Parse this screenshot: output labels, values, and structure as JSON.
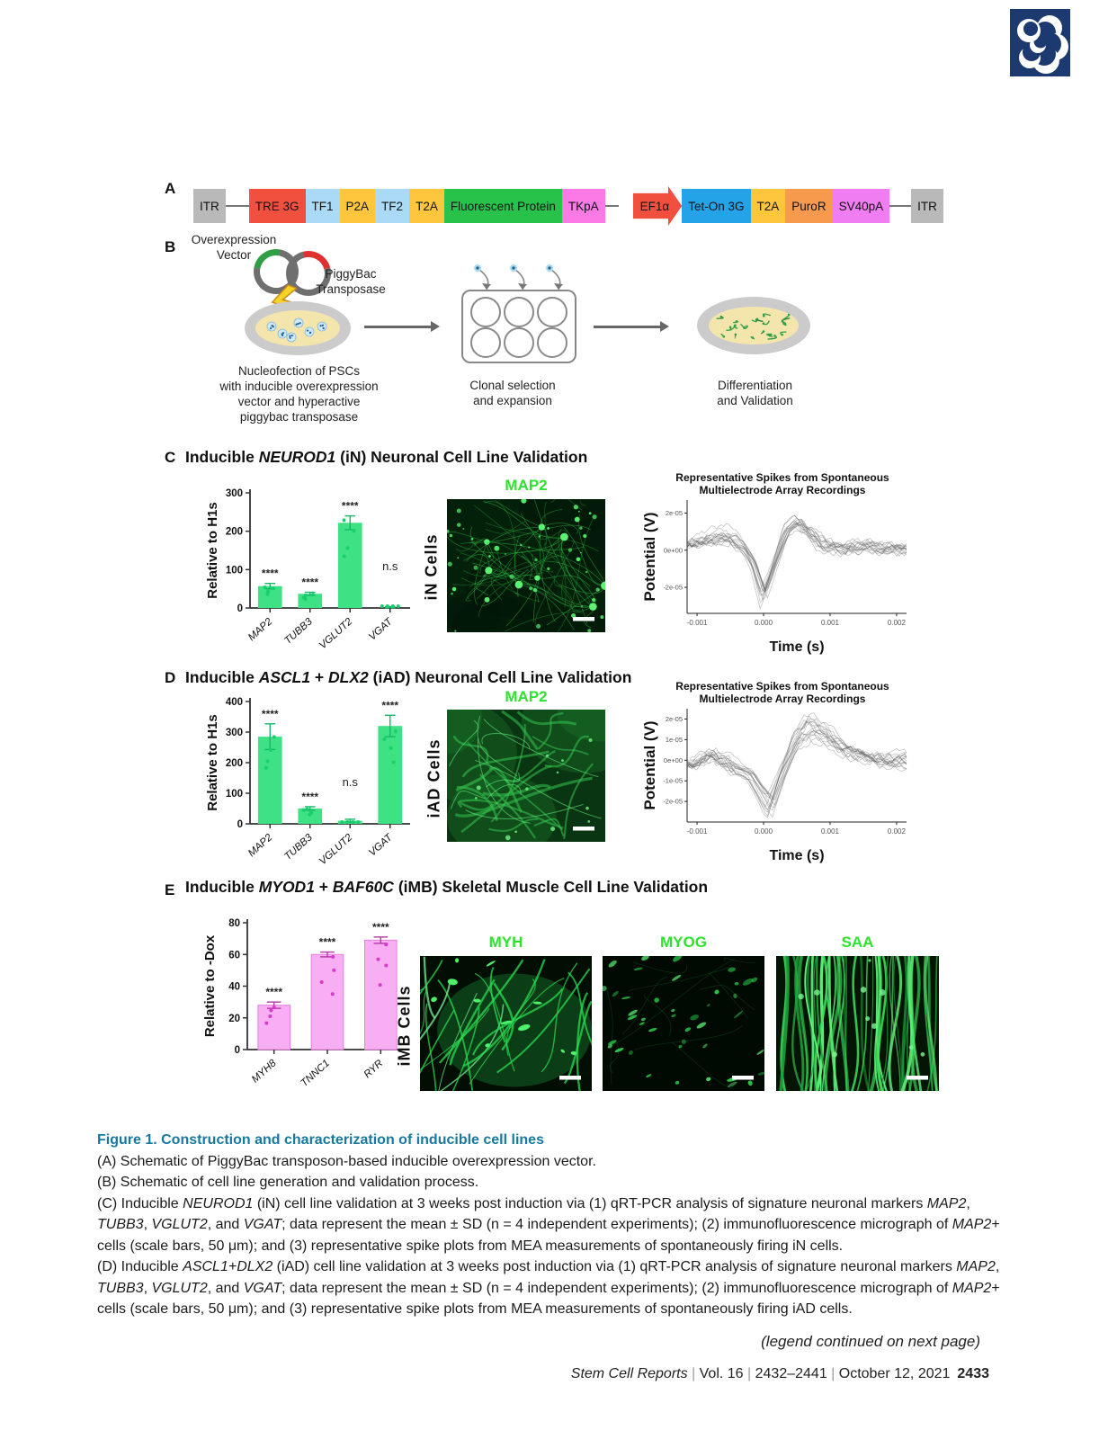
{
  "logo": {
    "name": "stem-cell-reports-journal-logo",
    "color": "#1d3a70"
  },
  "panel_a": {
    "letter": "A",
    "items": [
      {
        "kind": "box",
        "label": "ITR",
        "bg": "#b9b9b9"
      },
      {
        "kind": "line",
        "w": 26
      },
      {
        "kind": "box",
        "label": "TRE 3G",
        "bg": "#f2503f"
      },
      {
        "kind": "box",
        "label": "TF1",
        "bg": "#aadaf5"
      },
      {
        "kind": "box",
        "label": "P2A",
        "bg": "#fdc63d"
      },
      {
        "kind": "box",
        "label": "TF2",
        "bg": "#aadaf5"
      },
      {
        "kind": "box",
        "label": "T2A",
        "bg": "#fdc63d"
      },
      {
        "kind": "box",
        "label": "Fluorescent Protein",
        "bg": "#28c24b"
      },
      {
        "kind": "box",
        "label": "TKpA",
        "bg": "#fb7ae5"
      },
      {
        "kind": "line",
        "w": 15
      },
      {
        "kind": "gap",
        "w": 16
      },
      {
        "kind": "arrow",
        "label": "EF1α",
        "bg": "#f2503f"
      },
      {
        "kind": "box",
        "label": "Tet-On 3G",
        "bg": "#25a3e8"
      },
      {
        "kind": "box",
        "label": "T2A",
        "bg": "#fdc63d"
      },
      {
        "kind": "box",
        "label": "PuroR",
        "bg": "#f79a4d"
      },
      {
        "kind": "box",
        "label": "SV40pA",
        "bg": "#f07df2"
      },
      {
        "kind": "line",
        "w": 24
      },
      {
        "kind": "box",
        "label": "ITR",
        "bg": "#b9b9b9"
      }
    ]
  },
  "panel_b": {
    "letter": "B",
    "overexpression_vector_label": "Overexpression\nVector",
    "transposase_label": "PiggyBac\nTransposase",
    "caption1": "Nucleofection of PSCs\nwith inducible overexpression\nvector and hyperactive\npiggybac transposase",
    "caption2": "Clonal selection\nand expansion",
    "caption3": "Differentiation\nand Validation"
  },
  "panel_c": {
    "letter": "C",
    "title_segments": [
      {
        "t": "Inducible "
      },
      {
        "t": "NEUROD1",
        "i": 1
      },
      {
        "t": " (iN) Neuronal Cell Line Validation"
      }
    ],
    "stain_label": "MAP2",
    "row_label": "iN Cells",
    "mea_title": "Representative Spikes from Spontaneous\nMultielectrode Array Recordings"
  },
  "panel_d": {
    "letter": "D",
    "title_segments": [
      {
        "t": "Inducible "
      },
      {
        "t": "ASCL1",
        "i": 1
      },
      {
        "t": " + "
      },
      {
        "t": "DLX2",
        "i": 1
      },
      {
        "t": " (iAD) Neuronal Cell Line Validation"
      }
    ],
    "stain_label": "MAP2",
    "row_label": "iAD Cells",
    "mea_title": "Representative Spikes from Spontaneous\nMultielectrode Array Recordings"
  },
  "panel_e": {
    "letter": "E",
    "title_segments": [
      {
        "t": "Inducible "
      },
      {
        "t": "MYOD1",
        "i": 1
      },
      {
        "t": " + "
      },
      {
        "t": "BAF60C",
        "i": 1
      },
      {
        "t": " (iMB) Skeletal Muscle Cell Line Validation"
      }
    ],
    "stain_labels": [
      "MYH",
      "MYOG",
      "SAA"
    ],
    "row_label": "iMB Cells"
  },
  "chart_data": [
    {
      "id": "qpcr_iN",
      "type": "bar",
      "ylabel": "Relative to H1s",
      "ylim": [
        0,
        300
      ],
      "yticks": [
        0,
        100,
        200,
        300
      ],
      "categories": [
        "MAP2",
        "TUBB3",
        "VGLUT2",
        "VGAT"
      ],
      "values": [
        57,
        37,
        222,
        2
      ],
      "errors": [
        7,
        4,
        18,
        1.5
      ],
      "annotations": [
        "****",
        "****",
        "****",
        "n.s"
      ],
      "bar_color": "#3ee184",
      "err_color": "#16b868",
      "dot_color": "#18cf6e",
      "seed": 21
    },
    {
      "id": "qpcr_iAD",
      "type": "bar",
      "ylabel": "Relative to H1s",
      "ylim": [
        0,
        400
      ],
      "yticks": [
        0,
        100,
        200,
        300,
        400
      ],
      "categories": [
        "MAP2",
        "TUBB3",
        "VGLUT2",
        "VGAT"
      ],
      "values": [
        285,
        50,
        10,
        320
      ],
      "errors": [
        42,
        6,
        5,
        35
      ],
      "annotations": [
        "****",
        "****",
        "n.s",
        "****"
      ],
      "bar_color": "#3ee184",
      "err_color": "#16b868",
      "dot_color": "#18cf6e",
      "seed": 33
    },
    {
      "id": "qpcr_iMB",
      "type": "bar",
      "ylabel": "Relative to -Dox",
      "ylim": [
        0,
        80
      ],
      "yticks": [
        0,
        20,
        40,
        60,
        80
      ],
      "categories": [
        "MYH8",
        "TNNC1",
        "RYR"
      ],
      "values": [
        28,
        60,
        69
      ],
      "errors": [
        2,
        1.5,
        2
      ],
      "annotations": [
        "****",
        "****",
        "****"
      ],
      "bar_color": "#f8aef2",
      "err_color": "#b53aa8",
      "dot_color": "#d63bc9",
      "seed": 45
    },
    {
      "id": "mea_iN",
      "type": "line",
      "xlabel": "Time (s)",
      "ylabel": "Potential (V)",
      "xlim": [
        -0.00115,
        0.00215
      ],
      "ylim": [
        -3.4e-05,
        2.7e-05
      ],
      "xticks": [
        {
          "v": -0.001,
          "l": "-0.001"
        },
        {
          "v": 0,
          "l": "0.000"
        },
        {
          "v": 0.001,
          "l": "0.001"
        },
        {
          "v": 0.002,
          "l": "0.002"
        }
      ],
      "yticks": [
        {
          "v": 2e-05,
          "l": "2e-05"
        },
        {
          "v": 0,
          "l": "0e+00"
        },
        {
          "v": -2e-05,
          "l": "-2e-05"
        }
      ],
      "n_traces": 16,
      "seed": 7,
      "base": [
        [
          -0.0011,
          3e-06
        ],
        [
          -0.0008,
          6e-06
        ],
        [
          -0.0005,
          8e-06
        ],
        [
          -0.0003,
          2e-06
        ],
        [
          -0.00015,
          -8e-06
        ],
        [
          0,
          -2.7e-05
        ],
        [
          0.0002,
          -5e-06
        ],
        [
          0.00035,
          1.2e-05
        ],
        [
          0.0005,
          1.7e-05
        ],
        [
          0.0007,
          1e-05
        ],
        [
          0.0009,
          3e-06
        ],
        [
          0.0012,
          1e-06
        ],
        [
          0.0016,
          2e-06
        ],
        [
          0.002,
          1e-06
        ]
      ]
    },
    {
      "id": "mea_iAD",
      "type": "line",
      "xlabel": "Time (s)",
      "ylabel": "Potential (V)",
      "xlim": [
        -0.00115,
        0.00215
      ],
      "ylim": [
        -3e-05,
        2.5e-05
      ],
      "xticks": [
        {
          "v": -0.001,
          "l": "-0.001"
        },
        {
          "v": 0,
          "l": "0.000"
        },
        {
          "v": 0.001,
          "l": "0.001"
        },
        {
          "v": 0.002,
          "l": "0.002"
        }
      ],
      "yticks": [
        {
          "v": 2e-05,
          "l": "2e-05"
        },
        {
          "v": 1e-05,
          "l": "1e-05"
        },
        {
          "v": 0,
          "l": "0e+00"
        },
        {
          "v": -1e-05,
          "l": "-1e-05"
        },
        {
          "v": -2e-05,
          "l": "-2e-05"
        }
      ],
      "n_traces": 16,
      "seed": 11,
      "base": [
        [
          -0.0011,
          -2e-06
        ],
        [
          -0.0008,
          3e-06
        ],
        [
          -0.0005,
          -3e-06
        ],
        [
          -0.0002,
          -8e-06
        ],
        [
          5e-05,
          -2.3e-05
        ],
        [
          0.0001,
          -2.5e-05
        ],
        [
          0.0003,
          -5e-06
        ],
        [
          0.0005,
          1.2e-05
        ],
        [
          0.0007,
          1.9e-05
        ],
        [
          0.0009,
          1.4e-05
        ],
        [
          0.0012,
          6e-06
        ],
        [
          0.0015,
          3e-06
        ],
        [
          0.0018,
          1e-06
        ],
        [
          0.002,
          0
        ]
      ]
    }
  ],
  "micrographs": [
    {
      "id": "map2_iN",
      "style": "network",
      "seed": 3
    },
    {
      "id": "map2_iAD",
      "style": "smooth",
      "seed": 5
    },
    {
      "id": "myh",
      "style": "fibers",
      "seed": 9
    },
    {
      "id": "myog",
      "style": "dots",
      "seed": 13
    },
    {
      "id": "saa",
      "style": "vertical",
      "seed": 17
    }
  ],
  "legend": {
    "title": "Figure 1.  Construction and characterization of inducible cell lines",
    "lines": [
      [
        {
          "t": "(A) Schematic of PiggyBac transposon-based inducible overexpression vector."
        }
      ],
      [
        {
          "t": "(B) Schematic of cell line generation and validation process."
        }
      ],
      [
        {
          "t": "(C) Inducible "
        },
        {
          "t": "NEUROD1",
          "i": 1
        },
        {
          "t": " (iN) cell line validation at 3 weeks post induction via (1) qRT-PCR analysis of signature neuronal markers "
        },
        {
          "t": "MAP2",
          "i": 1
        },
        {
          "t": ","
        }
      ],
      [
        {
          "t": "TUBB3",
          "i": 1
        },
        {
          "t": ", "
        },
        {
          "t": "VGLUT2",
          "i": 1
        },
        {
          "t": ", and "
        },
        {
          "t": "VGAT",
          "i": 1
        },
        {
          "t": "; data represent the mean ± SD (n = 4 independent experiments); (2) immunofluorescence micrograph of "
        },
        {
          "t": "MAP2",
          "i": 1
        },
        {
          "t": "+"
        }
      ],
      [
        {
          "t": "cells (scale bars, 50 μm); and (3) representative spike plots from MEA measurements of spontaneously firing iN cells."
        }
      ],
      [
        {
          "t": "(D) Inducible "
        },
        {
          "t": "ASCL1+DLX2",
          "i": 1
        },
        {
          "t": " (iAD) cell line validation at 3 weeks post induction via (1) qRT-PCR analysis of signature neuronal markers "
        },
        {
          "t": "MAP2",
          "i": 1
        },
        {
          "t": ","
        }
      ],
      [
        {
          "t": "TUBB3",
          "i": 1
        },
        {
          "t": ", "
        },
        {
          "t": "VGLUT2",
          "i": 1
        },
        {
          "t": ", and "
        },
        {
          "t": "VGAT",
          "i": 1
        },
        {
          "t": "; data represent the mean ± SD (n = 4 independent experiments); (2) immunofluorescence micrograph of "
        },
        {
          "t": "MAP2",
          "i": 1
        },
        {
          "t": "+"
        }
      ],
      [
        {
          "t": "cells (scale bars, 50 μm); and (3) representative spike plots from MEA measurements of spontaneously firing iAD cells."
        }
      ]
    ]
  },
  "footer": {
    "continued": "(legend continued on next page)",
    "journal_segments": [
      {
        "t": "Stem Cell Reports",
        "i": 1
      },
      {
        "t": " | ",
        "c": "#9a9a9a"
      },
      {
        "t": "Vol. 16"
      },
      {
        "t": " | ",
        "c": "#9a9a9a"
      },
      {
        "t": "2432–2441"
      },
      {
        "t": " | ",
        "c": "#9a9a9a"
      },
      {
        "t": "October 12, 2021"
      },
      {
        "t": " "
      },
      {
        "t": "2433",
        "b": 1
      }
    ]
  }
}
